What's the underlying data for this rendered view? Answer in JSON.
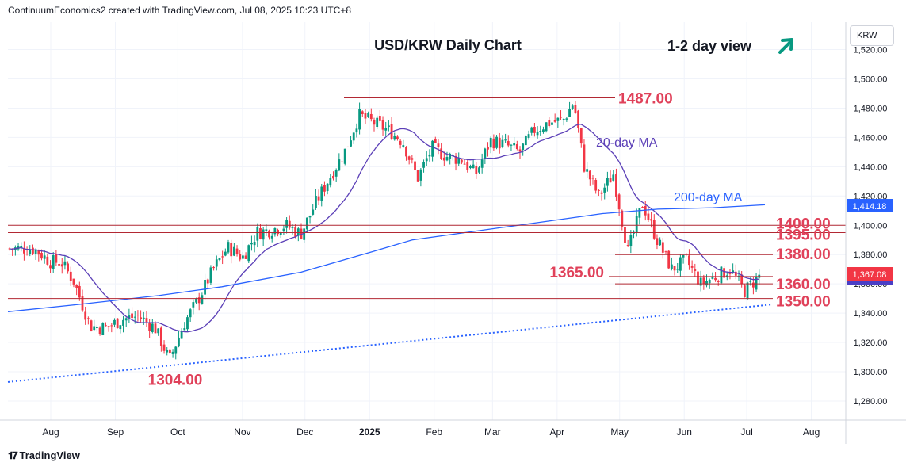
{
  "header": {
    "attribution": "ContinuumEconomics2 created with TradingView.com, Jul 08, 2025 10:23 UTC+8"
  },
  "footer": {
    "logo_text": "TradingView"
  },
  "currency_button": {
    "label": "KRW"
  },
  "chart_data": {
    "type": "candlestick",
    "title": "USD/KRW Daily Chart",
    "view_label": "1-2 day view",
    "view_arrow": "up-right-arrow",
    "x_ticks": [
      "Aug",
      "Sep",
      "Oct",
      "Nov",
      "Dec",
      "2025",
      "Feb",
      "Mar",
      "Apr",
      "May",
      "Jun",
      "Jul",
      "Aug"
    ],
    "y_ticks": [
      "1,520.00",
      "1,500.00",
      "1,480.00",
      "1,460.00",
      "1,440.00",
      "1,420.00",
      "1,400.00",
      "1,380.00",
      "1,360.00",
      "1,340.00",
      "1,320.00",
      "1,300.00",
      "1,280.00"
    ],
    "ylim": [
      1270,
      1530
    ],
    "current_price": "1,367.08",
    "ma200_value": "1,414.18",
    "levels": [
      {
        "label": "1487.00",
        "value": 1487
      },
      {
        "label": "1400.00",
        "value": 1400
      },
      {
        "label": "1395.00",
        "value": 1395
      },
      {
        "label": "1380.00",
        "value": 1380
      },
      {
        "label": "1365.00",
        "value": 1365
      },
      {
        "label": "1360.00",
        "value": 1360
      },
      {
        "label": "1350.00",
        "value": 1350
      },
      {
        "label": "1304.00",
        "value": 1304
      }
    ],
    "ma20_label": "20-day MA",
    "ma200_label": "200-day MA",
    "closes_approx": [
      {
        "date": "2024-07-24",
        "close": 1384
      },
      {
        "date": "2024-08-01",
        "close": 1375
      },
      {
        "date": "2024-08-06",
        "close": 1375
      },
      {
        "date": "2024-08-12",
        "close": 1362
      },
      {
        "date": "2024-08-20",
        "close": 1331
      },
      {
        "date": "2024-08-27",
        "close": 1330
      },
      {
        "date": "2024-09-05",
        "close": 1336
      },
      {
        "date": "2024-09-12",
        "close": 1338
      },
      {
        "date": "2024-09-20",
        "close": 1330
      },
      {
        "date": "2024-09-27",
        "close": 1308
      },
      {
        "date": "2024-10-04",
        "close": 1333
      },
      {
        "date": "2024-10-11",
        "close": 1350
      },
      {
        "date": "2024-10-18",
        "close": 1370
      },
      {
        "date": "2024-10-25",
        "close": 1385
      },
      {
        "date": "2024-11-01",
        "close": 1378
      },
      {
        "date": "2024-11-08",
        "close": 1395
      },
      {
        "date": "2024-11-15",
        "close": 1397
      },
      {
        "date": "2024-11-22",
        "close": 1400
      },
      {
        "date": "2024-11-29",
        "close": 1394
      },
      {
        "date": "2024-12-06",
        "close": 1415
      },
      {
        "date": "2024-12-13",
        "close": 1433
      },
      {
        "date": "2024-12-20",
        "close": 1450
      },
      {
        "date": "2024-12-27",
        "close": 1475
      },
      {
        "date": "2025-01-03",
        "close": 1470
      },
      {
        "date": "2025-01-10",
        "close": 1465
      },
      {
        "date": "2025-01-17",
        "close": 1457
      },
      {
        "date": "2025-01-24",
        "close": 1432
      },
      {
        "date": "2025-01-31",
        "close": 1453
      },
      {
        "date": "2025-02-07",
        "close": 1447
      },
      {
        "date": "2025-02-14",
        "close": 1445
      },
      {
        "date": "2025-02-21",
        "close": 1435
      },
      {
        "date": "2025-02-28",
        "close": 1458
      },
      {
        "date": "2025-03-07",
        "close": 1455
      },
      {
        "date": "2025-03-14",
        "close": 1450
      },
      {
        "date": "2025-03-21",
        "close": 1465
      },
      {
        "date": "2025-03-28",
        "close": 1470
      },
      {
        "date": "2025-04-04",
        "close": 1472
      },
      {
        "date": "2025-04-09",
        "close": 1484
      },
      {
        "date": "2025-04-14",
        "close": 1440
      },
      {
        "date": "2025-04-21",
        "close": 1420
      },
      {
        "date": "2025-04-28",
        "close": 1435
      },
      {
        "date": "2025-05-05",
        "close": 1382
      },
      {
        "date": "2025-05-12",
        "close": 1415
      },
      {
        "date": "2025-05-19",
        "close": 1390
      },
      {
        "date": "2025-05-26",
        "close": 1370
      },
      {
        "date": "2025-06-02",
        "close": 1376
      },
      {
        "date": "2025-06-09",
        "close": 1360
      },
      {
        "date": "2025-06-16",
        "close": 1365
      },
      {
        "date": "2025-06-23",
        "close": 1370
      },
      {
        "date": "2025-06-30",
        "close": 1355
      },
      {
        "date": "2025-07-08",
        "close": 1367
      }
    ]
  }
}
